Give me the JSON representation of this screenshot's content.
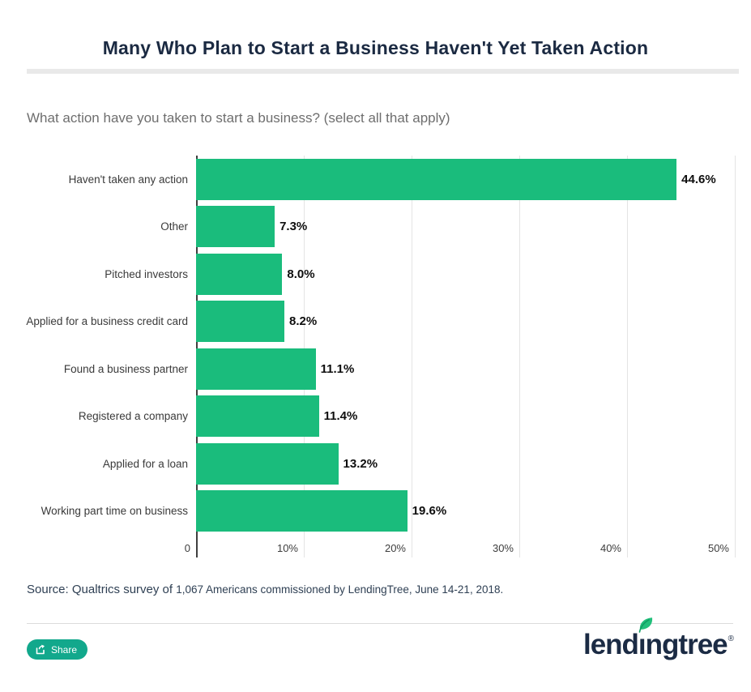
{
  "title": "Many Who Plan to Start a Business Haven't Yet Taken Action",
  "question": "What action have you taken to start a business? (select all that apply)",
  "chart_data": {
    "type": "bar",
    "orientation": "horizontal",
    "categories": [
      "Haven't taken any action",
      "Other",
      "Pitched investors",
      "Applied for a business credit card",
      "Found a business partner",
      "Registered a company",
      "Applied for a loan",
      "Working part time on business"
    ],
    "values": [
      44.6,
      7.3,
      8.0,
      8.2,
      11.1,
      11.4,
      13.2,
      19.6
    ],
    "value_labels": [
      "44.6%",
      "7.3%",
      "8.0%",
      "8.2%",
      "11.1%",
      "11.4%",
      "13.2%",
      "19.6%"
    ],
    "x_ticks": [
      {
        "value": 0,
        "label": "0"
      },
      {
        "value": 10,
        "label": "10%"
      },
      {
        "value": 20,
        "label": "20%"
      },
      {
        "value": 30,
        "label": "30%"
      },
      {
        "value": 40,
        "label": "40%"
      },
      {
        "value": 50,
        "label": "50%"
      }
    ],
    "xlim": [
      0,
      50
    ],
    "xlabel": "",
    "ylabel": "",
    "grid": "vertical-light-gray",
    "bar_color": "#1abc7c"
  },
  "source": {
    "prefix": "Source: Qualtrics survey of ",
    "detail": "1,067 Americans commissioned by LendingTree, June 14-21, 2018."
  },
  "footer": {
    "share_label": "Share",
    "logo_pre": "lend",
    "logo_i": "ı",
    "logo_post": "ngtree",
    "logo_reg": "®"
  },
  "colors": {
    "bar_green": "#1abc7c",
    "title_navy": "#1b2a42",
    "share_teal": "#12a88c",
    "logo_navy": "#1b2b44",
    "leaf_green": "#21bf7b",
    "gridline": "#e4e4e4",
    "axis": "#3f3f3f"
  }
}
